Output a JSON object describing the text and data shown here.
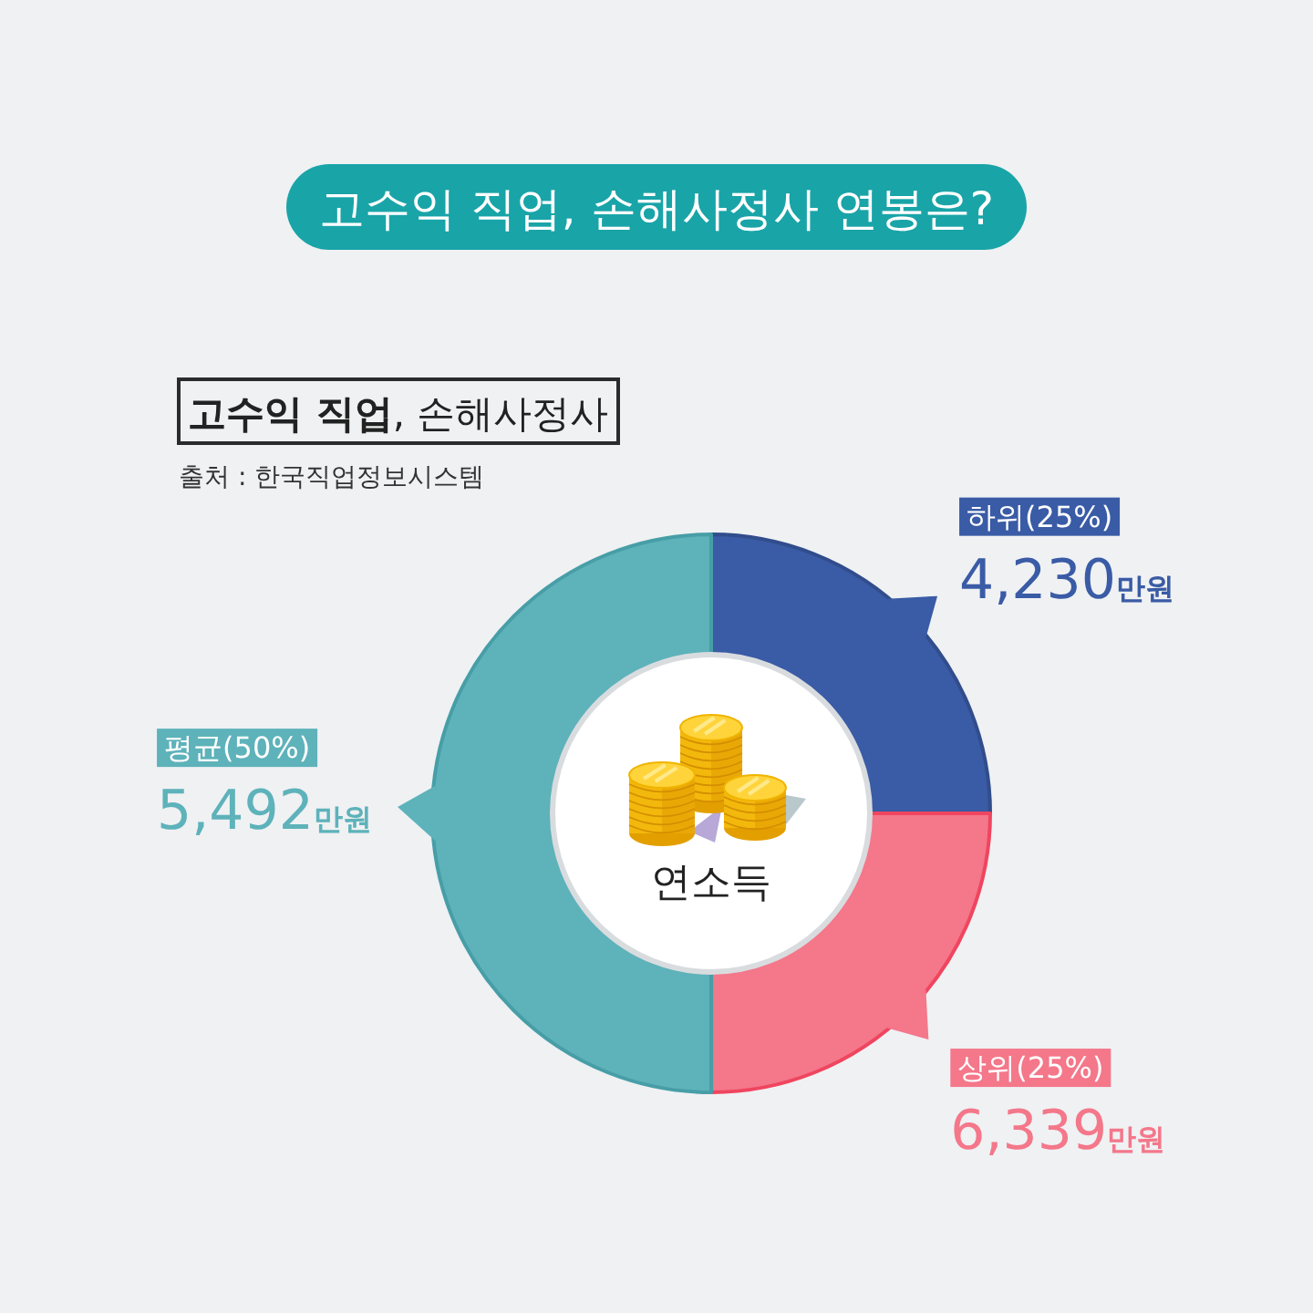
{
  "chart_data": {
    "type": "donut",
    "title": "고수익 직업, 손해사정사 연봉은?",
    "subtitle": "고수익 직업, 손해사정사",
    "categories": [
      "하위(25%)\n4,230만원",
      "상위(25%)\n6,339만원",
      "평균(50%)\n5,492만원"
    ],
    "values": [
      25,
      25,
      50
    ],
    "colors": [
      "#3a5ba5",
      "#f4778a",
      "#5eb2ba"
    ],
    "annotations": [
      "연소득",
      "출처 : 한국직업정보시스템"
    ]
  }
}
